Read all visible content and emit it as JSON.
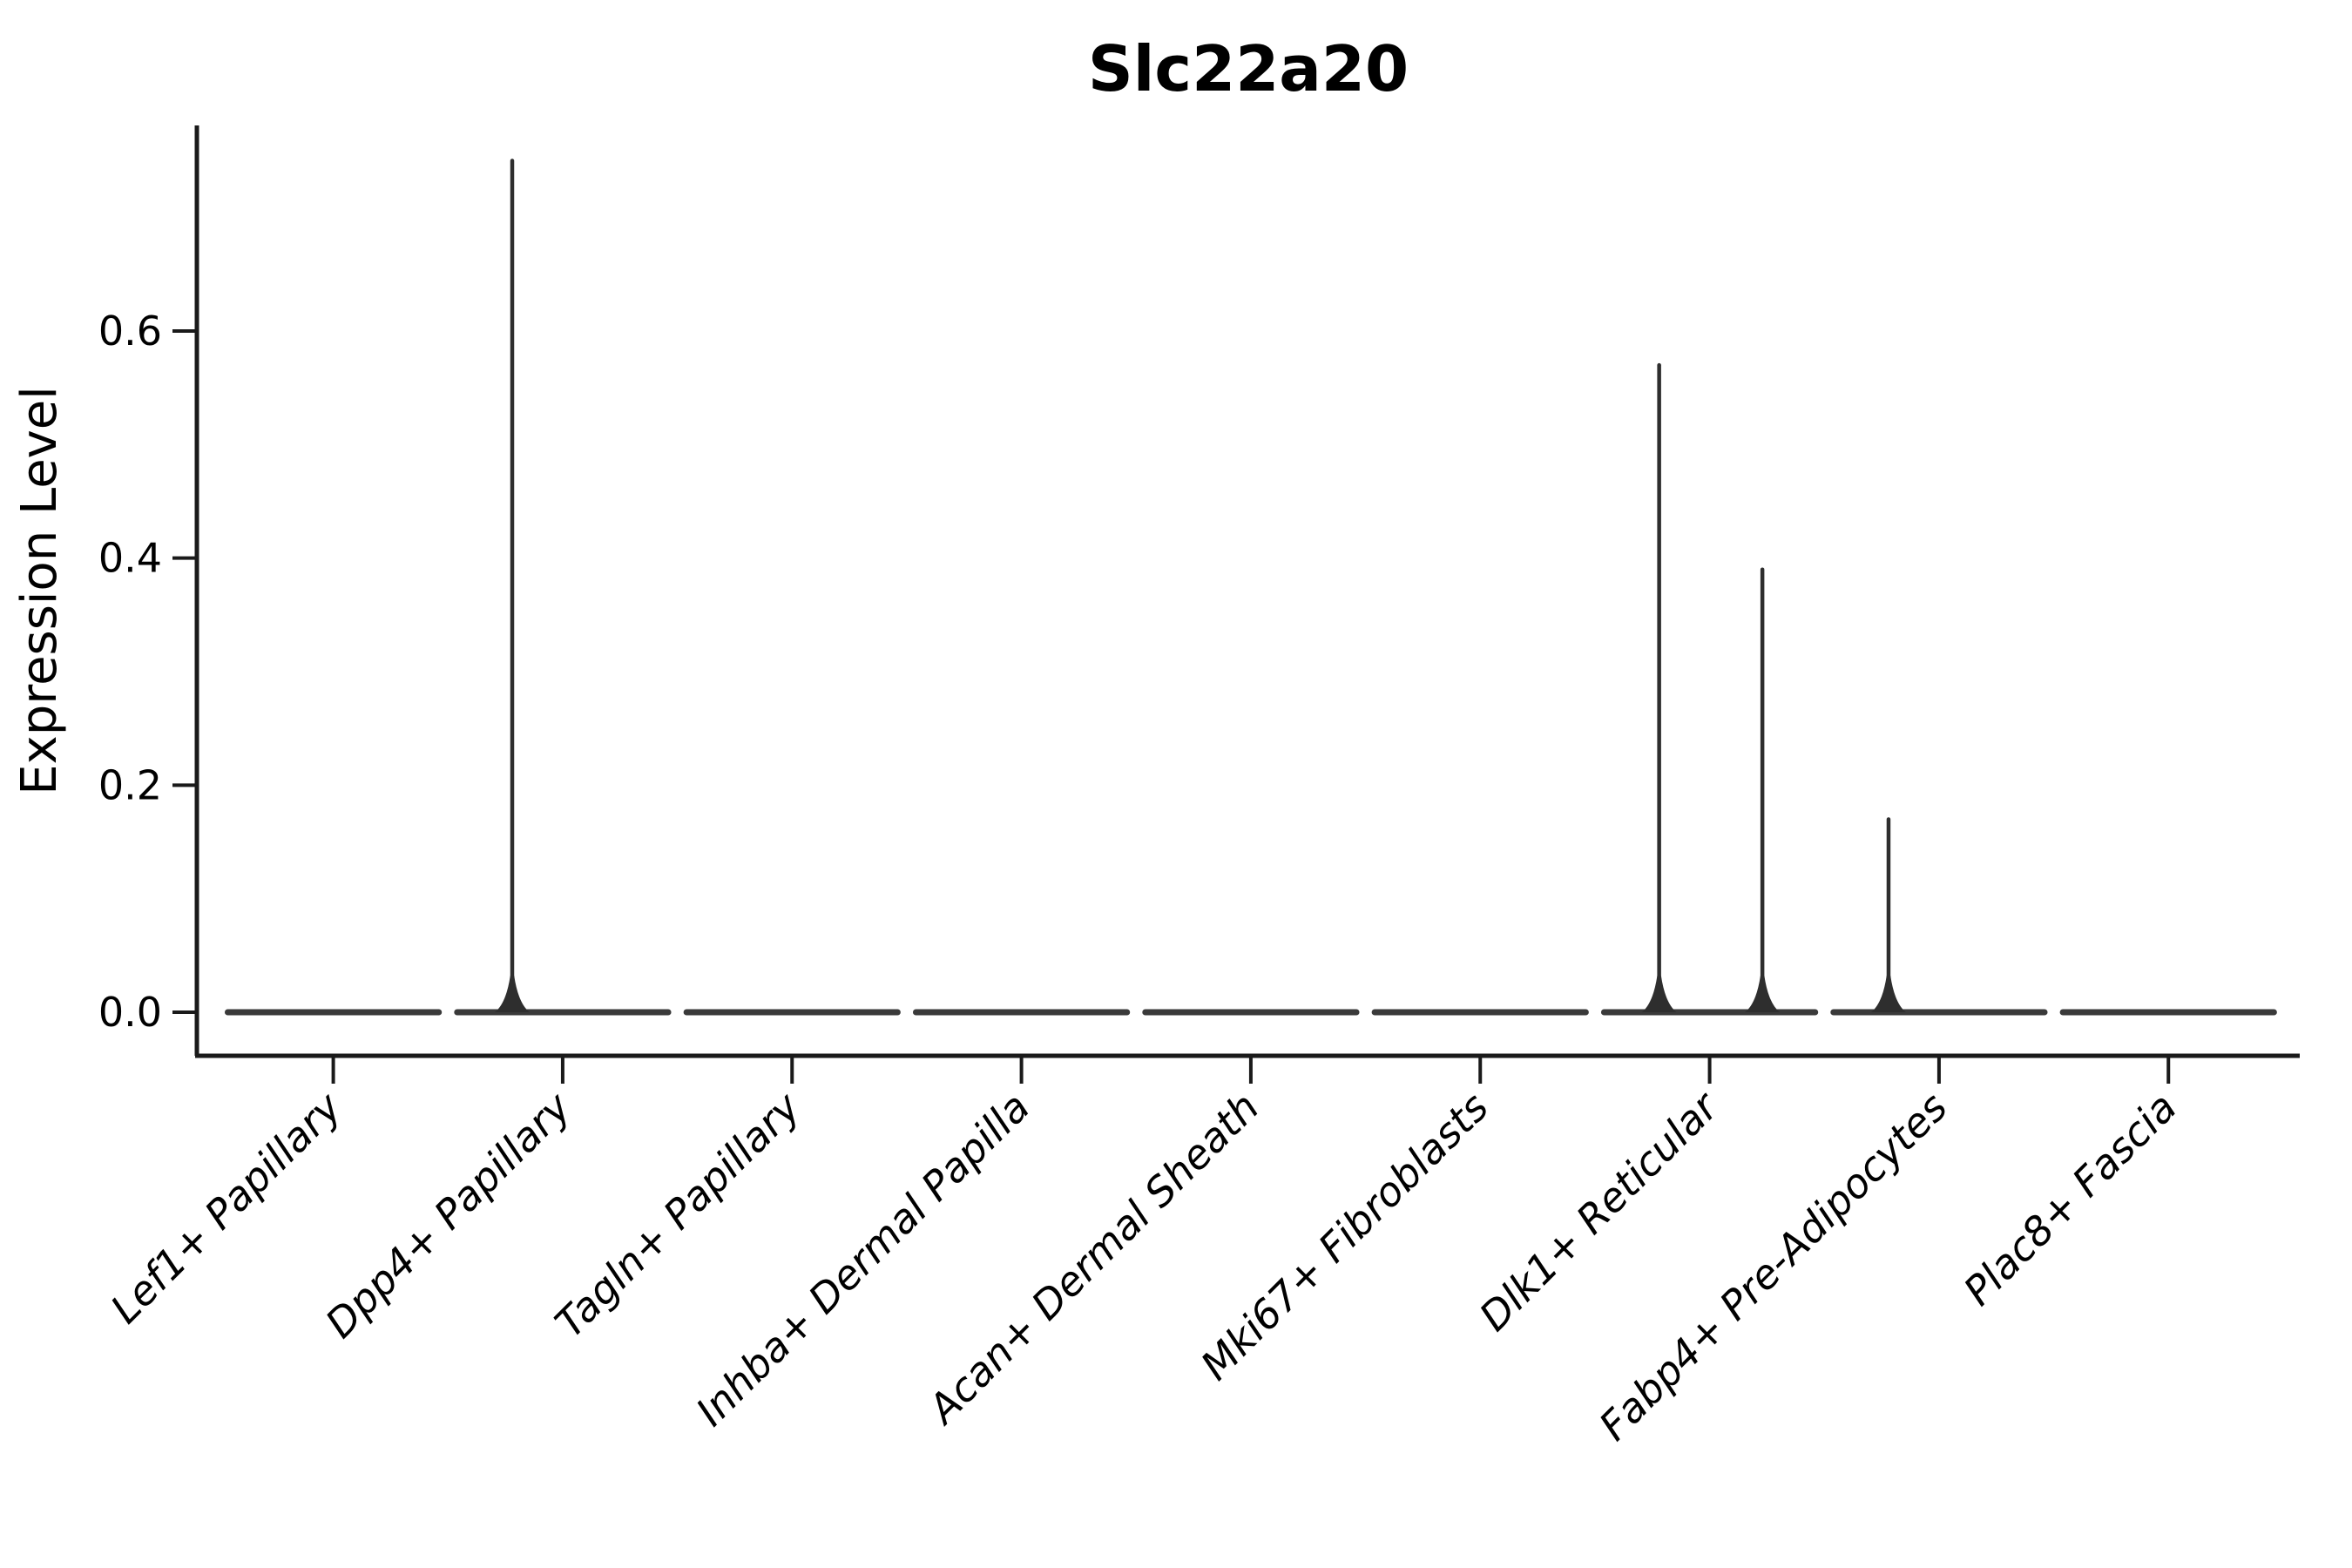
{
  "title": "Slc22a20",
  "ylabel": "Expression Level",
  "accent_colors": {
    "spine": "#1a1a1a",
    "violin_body": "#3a3a3a",
    "violin_spike": "#2e2e2e",
    "text": "#000000",
    "background": "#ffffff"
  },
  "chart_data": {
    "type": "violin",
    "title": "Slc22a20",
    "xlabel": "",
    "ylabel": "Expression Level",
    "legend": "none",
    "grid": false,
    "ylim": [
      -0.037,
      0.781
    ],
    "yticks": [
      0.0,
      0.2,
      0.4,
      0.6
    ],
    "ytick_labels": [
      "0.0",
      "0.2",
      "0.4",
      "0.6"
    ],
    "categories": [
      "Lef1+ Papillary",
      "Dpp4+ Papillary",
      "Tagln+ Papillary",
      "Inhba+ Dermal Papilla",
      "Acan+ Dermal Sheath",
      "Mki67+ Fibroblasts",
      "Dlk1+ Reticular",
      "Fabp4+ Pre-Adipocytes",
      "Plac8+ Fascia"
    ],
    "violins": [
      {
        "category": "Lef1+ Papillary",
        "baseline_value": 0.0,
        "spikes": []
      },
      {
        "category": "Dpp4+ Papillary",
        "baseline_value": 0.0,
        "spikes": [
          {
            "offset": -0.22,
            "value": 0.75
          }
        ]
      },
      {
        "category": "Tagln+ Papillary",
        "baseline_value": 0.0,
        "spikes": []
      },
      {
        "category": "Inhba+ Dermal Papilla",
        "baseline_value": 0.0,
        "spikes": []
      },
      {
        "category": "Acan+ Dermal Sheath",
        "baseline_value": 0.0,
        "spikes": []
      },
      {
        "category": "Mki67+ Fibroblasts",
        "baseline_value": 0.0,
        "spikes": []
      },
      {
        "category": "Dlk1+ Reticular",
        "baseline_value": 0.0,
        "spikes": [
          {
            "offset": -0.22,
            "value": 0.57
          },
          {
            "offset": 0.23,
            "value": 0.39
          }
        ]
      },
      {
        "category": "Fabp4+ Pre-Adipocytes",
        "baseline_value": 0.0,
        "spikes": [
          {
            "offset": -0.22,
            "value": 0.17
          }
        ]
      },
      {
        "category": "Plac8+ Fascia",
        "baseline_value": 0.0,
        "spikes": []
      }
    ],
    "body_halfwidth_fraction": 0.46,
    "layout_hint": "flat violins at zero expression with thin density spikes for rare expressing cells"
  }
}
